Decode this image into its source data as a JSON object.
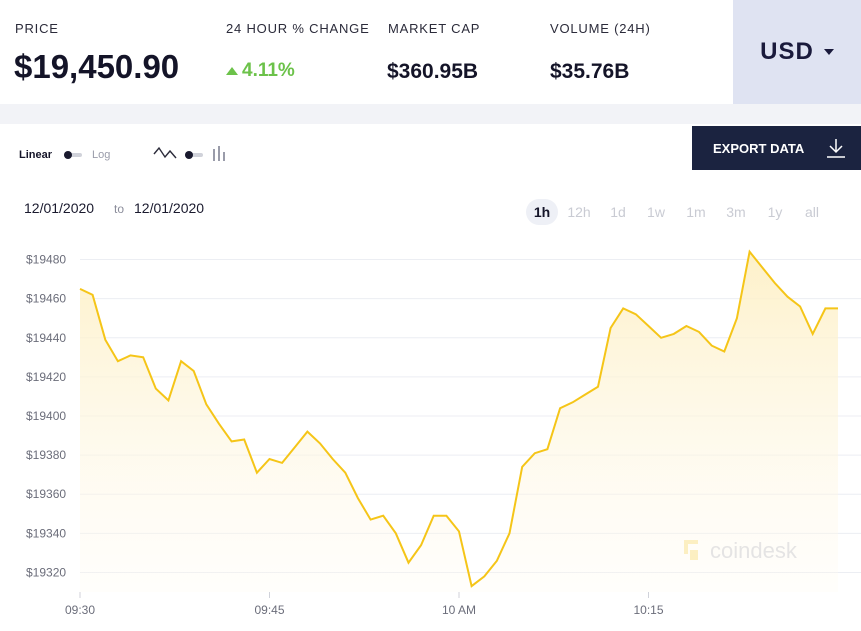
{
  "stats": {
    "price_label": "PRICE",
    "price_value": "$19,450.90",
    "change_label": "24 HOUR % CHANGE",
    "change_value": "4.11%",
    "cap_label": "MARKET CAP",
    "cap_value": "$360.95B",
    "volume_label": "VOLUME (24H)",
    "volume_value": "$35.76B"
  },
  "currency": {
    "selected": "USD"
  },
  "toggles": {
    "linear_label": "Linear",
    "log_label": "Log"
  },
  "export": {
    "label": "EXPORT DATA"
  },
  "range": {
    "from": "12/01/2020",
    "sep": "to",
    "to": "12/01/2020"
  },
  "timeframes": [
    "1h",
    "12h",
    "1d",
    "1w",
    "1m",
    "3m",
    "1y",
    "all"
  ],
  "active_timeframe": "1h",
  "watermark": "coindesk",
  "colors": {
    "line": "#f5c518",
    "fill_top": "#fdf0c6",
    "positive": "#6cc24a",
    "dark": "#1b2340"
  },
  "chart_data": {
    "type": "area",
    "title": "",
    "xlabel": "",
    "ylabel": "",
    "ylim": [
      19310,
      19490
    ],
    "y_ticks": [
      19320,
      19340,
      19360,
      19380,
      19400,
      19420,
      19440,
      19460,
      19480
    ],
    "y_tick_labels": [
      "$19320",
      "$19340",
      "$19360",
      "$19380",
      "$19400",
      "$19420",
      "$19440",
      "$19460",
      "$19480"
    ],
    "x_ticks": [
      "09:30",
      "09:45",
      "10 AM",
      "10:15"
    ],
    "x_tick_minutes": [
      0,
      15,
      30,
      45
    ],
    "series": [
      {
        "x_minutes": [
          0,
          1,
          2,
          3,
          4,
          5,
          6,
          7,
          8,
          9,
          10,
          11,
          12,
          13,
          14,
          15,
          16,
          17,
          18,
          19,
          20,
          21,
          22,
          23,
          24,
          25,
          26,
          27,
          28,
          29,
          30,
          31,
          32,
          33,
          34,
          35,
          36,
          37,
          38,
          39,
          40,
          41,
          42,
          43,
          44,
          45,
          46,
          47,
          48,
          49,
          50,
          51,
          52,
          53,
          54,
          55,
          56,
          57,
          58,
          59,
          60
        ],
        "values": [
          19465,
          19462,
          19439,
          19428,
          19431,
          19430,
          19414,
          19408,
          19428,
          19423,
          19406,
          19396,
          19387,
          19388,
          19371,
          19378,
          19376,
          19384,
          19392,
          19386,
          19378,
          19371,
          19358,
          19347,
          19349,
          19340,
          19325,
          19334,
          19349,
          19349,
          19341,
          19313,
          19318,
          19326,
          19340,
          19374,
          19381,
          19383,
          19404,
          19407,
          19411,
          19415,
          19445,
          19455,
          19452,
          19446,
          19440,
          19442,
          19446,
          19443,
          19436,
          19433,
          19450,
          19484,
          19476,
          19468,
          19461,
          19456,
          19442,
          19455,
          19455
        ]
      }
    ]
  }
}
